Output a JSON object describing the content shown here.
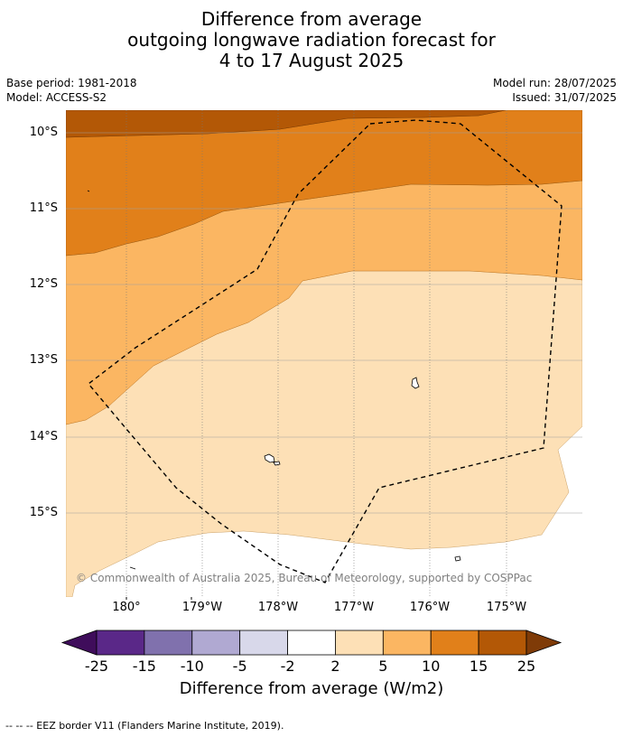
{
  "title": {
    "line1": "Difference from average",
    "line2": "outgoing longwave radiation forecast for",
    "line3": "4 to 17 August 2025"
  },
  "meta": {
    "base_period": "Base period: 1981-2018",
    "model": "Model: ACCESS-S2",
    "model_run": "Model run: 28/07/2025",
    "issued": "Issued: 31/07/2025"
  },
  "map": {
    "lat_labels": [
      "10°S",
      "11°S",
      "12°S",
      "13°S",
      "14°S",
      "15°S"
    ],
    "lon_labels": [
      "180°",
      "179°W",
      "178°W",
      "177°W",
      "176°W",
      "175°W"
    ],
    "copyright": "© Commonwealth of Australia 2025, Bureau of Meteorology, supported by COSPPac",
    "boundary": "EEZ border"
  },
  "colorbar": {
    "ticks": [
      "-25",
      "-15",
      "-10",
      "-5",
      "-2",
      "2",
      "5",
      "10",
      "15",
      "25"
    ],
    "colors": [
      "#3f0d5b",
      "#5a2888",
      "#8071ad",
      "#b0a9d2",
      "#d8d8ea",
      "#ffffff",
      "#fde0b6",
      "#fbb662",
      "#e1801a",
      "#b35806",
      "#7f3b08"
    ],
    "label": "Difference from average (W/m2)"
  },
  "legend": {
    "eez_line": "--  --  -- EEZ border V11 (Flanders Marine Institute, 2019)."
  }
}
